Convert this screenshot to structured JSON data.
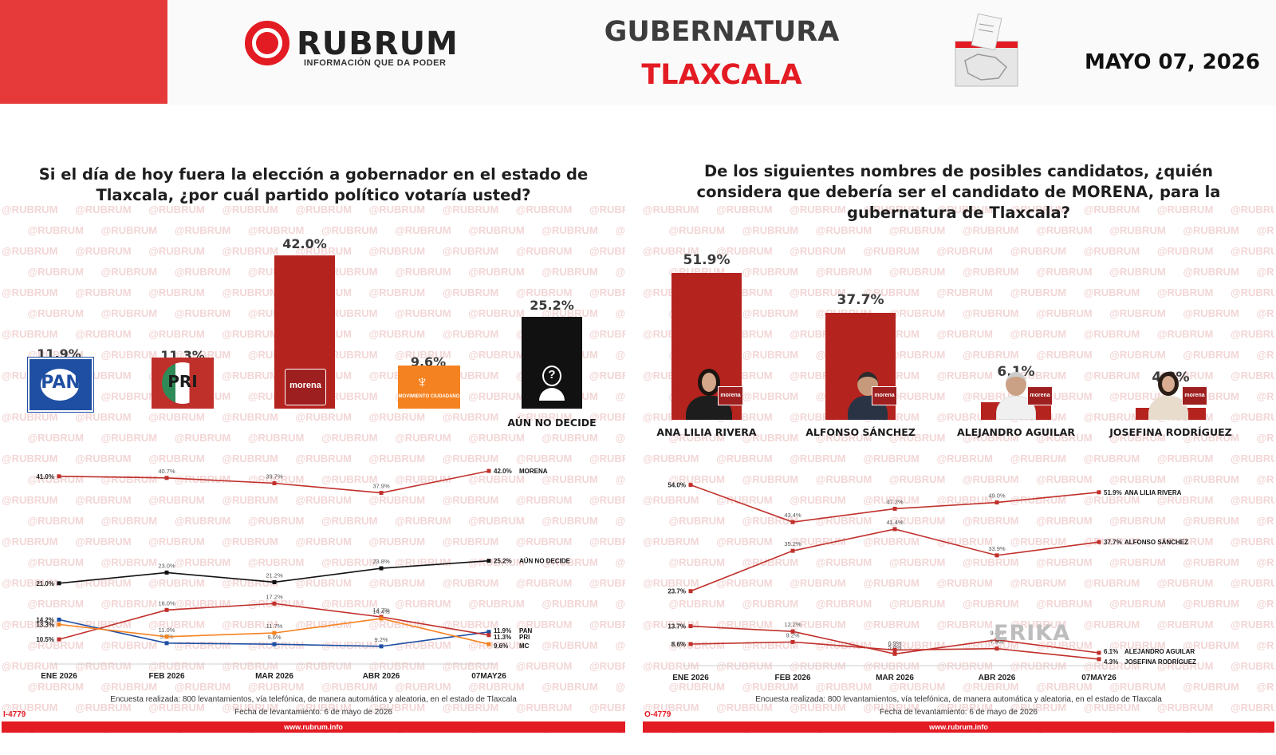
{
  "header": {
    "logo_name": "RUBRUM",
    "logo_tagline": "INFORMACIÓN QUE DA PODER",
    "title_line1": "GUBERNATURA",
    "title_line2": "TLAXCALA",
    "date": "MAYO 07, 2026",
    "icon": "ballot-box-icon",
    "colors": {
      "brand_red": "#e31b23",
      "bar_red": "#b5231f",
      "pan_blue": "#1f4fa3",
      "mc_orange": "#f58220"
    }
  },
  "watermark_text": "@RUBRUM",
  "left": {
    "title": "Si el día de hoy fuera la elección a gobernador en el estado de Tlaxcala, ¿por cuál partido político votaría usted?",
    "logos": {
      "pan": "PAN",
      "pri": "PRI",
      "morena": "morena",
      "mc": "MOVIMIENTO CIUDADANO",
      "undecided": "?"
    },
    "undecided_label": "AÚN NO DECIDE",
    "footer_note": "Encuesta realizada: 800 levantamientos, vía telefónica, de manera automática y aleatoria, en el estado de Tlaxcala",
    "footer_date": "Fecha de levantamiento: 6 de mayo de 2026",
    "footer_url": "www.rubrum.info",
    "footer_code": "I-4779"
  },
  "right": {
    "title": "De los siguientes nombres de posibles candidatos, ¿quién considera que debería ser el candidato de MORENA, para la gubernatura de Tlaxcala?",
    "party_tag": "morena",
    "watermark_sig": "ERIKA",
    "footer_note": "Encuesta realizada: 800 levantamientos, vía telefónica, de manera automática y aleatoria, en el estado de Tlaxcala",
    "footer_date": "Fecha de levantamiento: 6 de mayo de 2026",
    "footer_url": "www.rubrum.info",
    "footer_code": "O-4779"
  },
  "chart_data": [
    {
      "type": "bar",
      "title": "Si el día de hoy fuera la elección a gobernador en el estado de Tlaxcala, ¿por cuál partido político votaría usted?",
      "categories": [
        "PAN",
        "PRI",
        "MORENA",
        "MC",
        "AÚN NO DECIDE"
      ],
      "values": [
        11.9,
        11.3,
        42.0,
        9.6,
        25.2
      ],
      "value_labels": [
        "11.9%",
        "11.3%",
        "42.0%",
        "9.6%",
        "25.2%"
      ],
      "colors": [
        "#b5231f",
        "#b5231f",
        "#b5231f",
        "#b5231f",
        "#111111"
      ],
      "ylim": [
        0,
        45
      ]
    },
    {
      "type": "line",
      "x": [
        "ENE 2026",
        "FEB 2026",
        "MAR 2026",
        "ABR 2026",
        "07MAY26"
      ],
      "ylim": [
        5,
        45
      ],
      "series": [
        {
          "name": "MORENA",
          "color": "#c0302b",
          "values": [
            41.0,
            40.7,
            39.7,
            37.9,
            42.0
          ],
          "labels": [
            "41.0%",
            "40.7%",
            "39.7%",
            "37.9%",
            "42.0%"
          ]
        },
        {
          "name": "AÚN NO DECIDE",
          "color": "#111111",
          "values": [
            21.0,
            23.0,
            21.2,
            23.8,
            25.2
          ],
          "labels": [
            "21.0%",
            "23.0%",
            "21.2%",
            "23.8%",
            "25.2%"
          ]
        },
        {
          "name": "PAN",
          "color": "#1f4fa3",
          "values": [
            14.2,
            9.8,
            9.6,
            9.2,
            11.9
          ],
          "labels": [
            "14.2%",
            "9.8%",
            "9.6%",
            "9.2%",
            "11.9%"
          ]
        },
        {
          "name": "PRI",
          "color": "#c0302b",
          "values": [
            10.5,
            16.0,
            17.2,
            14.7,
            11.3
          ],
          "labels": [
            "10.5%",
            "16.0%",
            "17.2%",
            "14.7%",
            "11.3%"
          ]
        },
        {
          "name": "MC",
          "color": "#f58220",
          "values": [
            13.3,
            11.0,
            11.7,
            14.4,
            9.6
          ],
          "labels": [
            "13.3%",
            "11.0%",
            "11.7%",
            "14.4%",
            "9.6%"
          ]
        }
      ]
    },
    {
      "type": "bar",
      "title": "De los siguientes nombres de posibles candidatos, ¿quién considera que debería ser el candidato de MORENA, para la gubernatura de Tlaxcala?",
      "categories": [
        "ANA LILIA RIVERA",
        "ALFONSO SÁNCHEZ",
        "ALEJANDRO AGUILAR",
        "JOSEFINA RODRÍGUEZ"
      ],
      "values": [
        51.9,
        37.7,
        6.1,
        4.3
      ],
      "value_labels": [
        "51.9%",
        "37.7%",
        "6.1%",
        "4.3%"
      ],
      "ylim": [
        0,
        55
      ]
    },
    {
      "type": "line",
      "x": [
        "ENE 2026",
        "FEB 2026",
        "MAR 2026",
        "ABR 2026",
        "07MAY26"
      ],
      "ylim": [
        2,
        58
      ],
      "series": [
        {
          "name": "ANA LILIA RIVERA",
          "color": "#c0302b",
          "values": [
            54.0,
            43.4,
            47.2,
            49.0,
            51.9
          ],
          "labels": [
            "54.0%",
            "43.4%",
            "47.2%",
            "49.0%",
            "51.9%"
          ]
        },
        {
          "name": "ALFONSO SÁNCHEZ",
          "color": "#c0302b",
          "values": [
            23.7,
            35.2,
            41.4,
            33.9,
            37.7
          ],
          "labels": [
            "23.7%",
            "35.2%",
            "41.4%",
            "33.9%",
            "37.7%"
          ]
        },
        {
          "name": "ALEJANDRO AGUILAR",
          "color": "#c0302b",
          "values": [
            13.7,
            12.2,
            5.8,
            9.8,
            6.1
          ],
          "labels": [
            "13.7%",
            "12.2%",
            "5.8%",
            "9.8%",
            "6.1%"
          ]
        },
        {
          "name": "JOSEFINA RODRÍGUEZ",
          "color": "#c0302b",
          "values": [
            8.6,
            9.2,
            6.9,
            7.3,
            4.3
          ],
          "labels": [
            "8.6%",
            "9.2%",
            "6.9%",
            "7.3%",
            "4.3%"
          ]
        }
      ]
    }
  ]
}
